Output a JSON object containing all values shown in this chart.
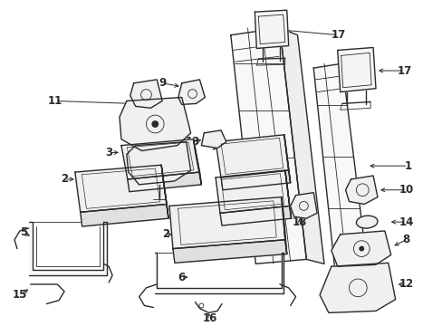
{
  "background_color": "#ffffff",
  "line_color": "#2a2a2a",
  "label_color": "#000000",
  "font_size": 8.5,
  "figsize": [
    4.89,
    3.6
  ],
  "dpi": 100
}
